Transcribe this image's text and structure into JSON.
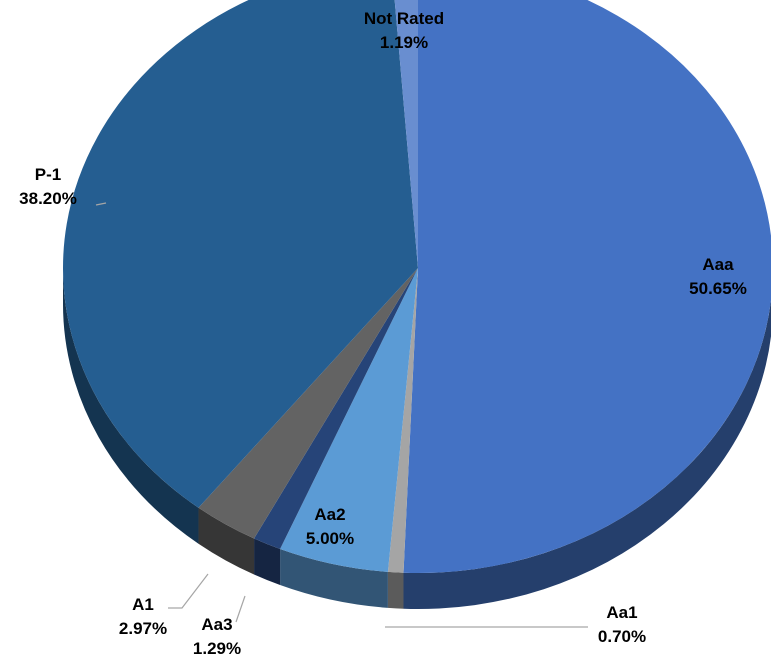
{
  "chart_data": {
    "type": "pie",
    "style": "3d",
    "categories": [
      "Aaa",
      "Aa1",
      "Aa2",
      "Aa3",
      "A1",
      "P-1",
      "Not Rated"
    ],
    "values": [
      50.65,
      0.7,
      5.0,
      1.29,
      2.97,
      38.2,
      1.19
    ],
    "value_labels": [
      "50.65%",
      "0.70%",
      "5.00%",
      "1.29%",
      "2.97%",
      "38.20%",
      "1.19%"
    ],
    "colors": [
      "#4472C4",
      "#A5A5A5",
      "#5B9BD5",
      "#264478",
      "#636363",
      "#255E91",
      "#698ED0"
    ],
    "title": "",
    "legend": "none"
  }
}
